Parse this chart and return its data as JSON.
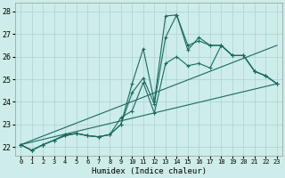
{
  "xlabel": "Humidex (Indice chaleur)",
  "background_color": "#cdecea",
  "grid_color": "#aed8d4",
  "line_color": "#1a6b5e",
  "xlim": [
    -0.5,
    23.5
  ],
  "ylim": [
    21.6,
    28.4
  ],
  "yticks": [
    22,
    23,
    24,
    25,
    26,
    27,
    28
  ],
  "xticks": [
    0,
    1,
    2,
    3,
    4,
    5,
    6,
    7,
    8,
    9,
    10,
    11,
    12,
    13,
    14,
    15,
    16,
    17,
    18,
    19,
    20,
    21,
    22,
    23
  ],
  "lines": [
    {
      "x": [
        0,
        1,
        2,
        3,
        4,
        5,
        6,
        7,
        8,
        9,
        10,
        11,
        12,
        13,
        14,
        15,
        16,
        17,
        18,
        19,
        20,
        21,
        22,
        23
      ],
      "y": [
        22.1,
        21.85,
        22.1,
        22.3,
        22.5,
        22.6,
        22.5,
        22.45,
        22.55,
        23.0,
        24.8,
        26.35,
        24.0,
        27.8,
        27.85,
        26.5,
        26.7,
        26.5,
        26.5,
        26.05,
        26.05,
        25.35,
        25.15,
        24.8
      ],
      "marker": true
    },
    {
      "x": [
        0,
        1,
        2,
        3,
        4,
        5,
        6,
        7,
        8,
        9,
        10,
        11,
        12,
        13,
        14,
        15,
        16,
        17,
        18,
        19,
        20,
        21,
        22,
        23
      ],
      "y": [
        22.1,
        21.85,
        22.1,
        22.3,
        22.5,
        22.6,
        22.5,
        22.45,
        22.55,
        23.0,
        24.4,
        25.05,
        23.9,
        26.85,
        27.85,
        26.3,
        26.85,
        26.5,
        26.5,
        26.05,
        26.05,
        25.35,
        25.15,
        24.8
      ],
      "marker": true
    },
    {
      "x": [
        0,
        1,
        2,
        3,
        4,
        5,
        6,
        7,
        8,
        9,
        10,
        11,
        12,
        13,
        14,
        15,
        16,
        17,
        18,
        19,
        20,
        21,
        22,
        23
      ],
      "y": [
        22.1,
        21.85,
        22.1,
        22.3,
        22.55,
        22.6,
        22.5,
        22.45,
        22.55,
        23.3,
        23.6,
        24.85,
        23.5,
        25.7,
        26.0,
        25.6,
        25.7,
        25.5,
        26.5,
        26.05,
        26.05,
        25.35,
        25.15,
        24.8
      ],
      "marker": true
    },
    {
      "x": [
        0,
        23
      ],
      "y": [
        22.1,
        24.8
      ],
      "marker": false
    },
    {
      "x": [
        0,
        23
      ],
      "y": [
        22.1,
        26.5
      ],
      "marker": false
    }
  ]
}
